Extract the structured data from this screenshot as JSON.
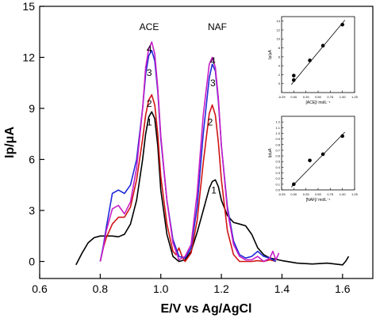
{
  "chart_data": {
    "type": "line",
    "xlabel": "E/V vs Ag/AgCl",
    "ylabel": "Ip/μA",
    "xlim": [
      0.6,
      1.7
    ],
    "ylim": [
      -1,
      15
    ],
    "xticks": [
      "0.6",
      "0.8",
      "1.0",
      "1.2",
      "1.4",
      "1.6"
    ],
    "yticks": [
      "0",
      "3",
      "6",
      "9",
      "12",
      "15"
    ],
    "annotations": [
      "ACE",
      "NAF"
    ],
    "series": [
      {
        "name": "1",
        "color": "#000000",
        "x": [
          0.72,
          0.74,
          0.76,
          0.78,
          0.8,
          0.82,
          0.84,
          0.86,
          0.88,
          0.9,
          0.92,
          0.94,
          0.95,
          0.96,
          0.97,
          0.98,
          0.99,
          1.0,
          1.02,
          1.04,
          1.06,
          1.08,
          1.1,
          1.12,
          1.14,
          1.16,
          1.17,
          1.18,
          1.19,
          1.2,
          1.22,
          1.24,
          1.26,
          1.28,
          1.3,
          1.32,
          1.34,
          1.36,
          1.4,
          1.45,
          1.5,
          1.55,
          1.6,
          1.61,
          1.62
        ],
        "y": [
          -0.2,
          0.5,
          1.1,
          1.4,
          1.5,
          1.5,
          1.5,
          1.45,
          1.6,
          2.2,
          3.6,
          6.0,
          7.5,
          8.5,
          8.8,
          8.4,
          6.8,
          4.2,
          1.6,
          0.3,
          0.0,
          0.1,
          0.6,
          1.7,
          3.0,
          4.3,
          4.7,
          4.8,
          4.4,
          3.6,
          2.7,
          2.3,
          2.2,
          2.1,
          1.6,
          0.8,
          0.4,
          0.2,
          0.05,
          -0.1,
          -0.15,
          -0.1,
          -0.2,
          0.0,
          0.3
        ]
      },
      {
        "name": "2",
        "color": "#d01414",
        "x": [
          0.8,
          0.81,
          0.82,
          0.84,
          0.86,
          0.88,
          0.9,
          0.92,
          0.94,
          0.95,
          0.96,
          0.97,
          0.98,
          0.99,
          1.0,
          1.02,
          1.04,
          1.05,
          1.06,
          1.07,
          1.08,
          1.1,
          1.12,
          1.14,
          1.16,
          1.17,
          1.18,
          1.19,
          1.2,
          1.22,
          1.24,
          1.26,
          1.28,
          1.3,
          1.32,
          1.34,
          1.36,
          1.38
        ],
        "y": [
          0.0,
          0.8,
          1.4,
          2.2,
          2.6,
          2.6,
          3.2,
          4.8,
          7.2,
          8.6,
          9.5,
          9.8,
          9.2,
          7.5,
          5.0,
          2.2,
          0.6,
          0.4,
          0.8,
          0.3,
          0.0,
          0.5,
          2.4,
          5.8,
          8.7,
          9.2,
          8.6,
          7.0,
          4.8,
          1.8,
          0.4,
          0.0,
          0.0,
          0.0,
          0.05,
          0.0,
          0.1,
          0.0
        ]
      },
      {
        "name": "3",
        "color": "#1f2bd6",
        "x": [
          0.8,
          0.81,
          0.82,
          0.84,
          0.86,
          0.88,
          0.9,
          0.92,
          0.94,
          0.95,
          0.96,
          0.97,
          0.98,
          0.99,
          1.0,
          1.02,
          1.04,
          1.06,
          1.08,
          1.1,
          1.12,
          1.14,
          1.16,
          1.17,
          1.18,
          1.19,
          1.2,
          1.22,
          1.24,
          1.26,
          1.28,
          1.3,
          1.32,
          1.34,
          1.36,
          1.38
        ],
        "y": [
          0.0,
          0.9,
          2.0,
          4.0,
          4.2,
          4.0,
          4.5,
          6.0,
          9.0,
          11.0,
          12.1,
          12.4,
          11.8,
          10.0,
          7.2,
          3.6,
          1.3,
          0.3,
          0.2,
          0.8,
          3.2,
          7.5,
          10.8,
          11.6,
          11.2,
          9.4,
          6.8,
          3.2,
          1.2,
          0.4,
          0.2,
          0.3,
          0.6,
          0.3,
          0.2,
          0.0
        ]
      },
      {
        "name": "4",
        "color": "#c81ec8",
        "x": [
          0.8,
          0.81,
          0.82,
          0.84,
          0.86,
          0.88,
          0.9,
          0.92,
          0.94,
          0.95,
          0.96,
          0.97,
          0.98,
          0.99,
          1.0,
          1.02,
          1.04,
          1.06,
          1.08,
          1.1,
          1.12,
          1.14,
          1.16,
          1.17,
          1.18,
          1.19,
          1.2,
          1.22,
          1.24,
          1.26,
          1.28,
          1.3,
          1.32,
          1.34,
          1.36,
          1.37,
          1.38,
          1.39
        ],
        "y": [
          0.0,
          0.8,
          1.8,
          3.1,
          3.3,
          2.8,
          3.5,
          5.5,
          9.0,
          11.4,
          12.5,
          12.9,
          12.2,
          10.2,
          7.4,
          3.6,
          1.1,
          0.1,
          0.3,
          1.0,
          4.0,
          8.6,
          11.6,
          12.0,
          11.4,
          9.6,
          6.8,
          3.0,
          1.0,
          0.3,
          0.1,
          0.1,
          0.3,
          0.0,
          0.2,
          0.6,
          0.1,
          0.5
        ]
      }
    ],
    "curve_labels": [
      {
        "text": "1",
        "x": 0.962,
        "y": 8.0
      },
      {
        "text": "2",
        "x": 0.962,
        "y": 9.1
      },
      {
        "text": "3",
        "x": 0.962,
        "y": 10.9
      },
      {
        "text": "4",
        "x": 0.962,
        "y": 12.3
      },
      {
        "text": "1",
        "x": 1.175,
        "y": 4.0
      },
      {
        "text": "2",
        "x": 1.163,
        "y": 8.0
      },
      {
        "text": "3",
        "x": 1.172,
        "y": 10.3
      },
      {
        "text": "4",
        "x": 1.172,
        "y": 11.6
      }
    ],
    "insets": [
      {
        "type": "scatter",
        "xlabel": "[ACE]/ molL⁻¹",
        "ylabel": "Ip/μA",
        "xlim": [
          -0.25,
          1.25
        ],
        "ylim": [
          -2,
          15
        ],
        "xticks": [
          -0.25,
          0.0,
          0.25,
          0.5,
          0.75,
          1.0,
          1.25
        ],
        "xticklabels": [
          "-0.25",
          "0.00",
          "0.25",
          "0.50",
          "0.75",
          "1.00",
          "1.25"
        ],
        "yticks": [
          0,
          2,
          4,
          6,
          8,
          10,
          12,
          14
        ],
        "yticklabels": [
          "0",
          "2",
          "4",
          "6",
          "8",
          "10",
          "12",
          "14"
        ],
        "points": {
          "x": [
            0.0,
            0.0,
            0.33,
            0.6,
            1.0
          ],
          "y": [
            0.8,
            1.8,
            5.2,
            8.5,
            13.2
          ]
        },
        "fit": {
          "x": [
            -0.05,
            1.05
          ],
          "y": [
            -0.2,
            14.2
          ]
        }
      },
      {
        "type": "scatter",
        "xlabel": "[NAF]/ molL⁻¹",
        "ylabel": "Ip/μA",
        "xlim": [
          -0.25,
          1.25
        ],
        "ylim": [
          0,
          1.3
        ],
        "xticks": [
          -0.25,
          0.0,
          0.25,
          0.5,
          0.75,
          1.0,
          1.25
        ],
        "xticklabels": [
          "-0.25",
          "0.00",
          "0.25",
          "0.50",
          "0.75",
          "1.00",
          "1.25"
        ],
        "yticks": [
          0,
          0.1,
          0.2,
          0.3,
          0.4,
          0.5,
          0.6,
          0.7,
          0.8,
          0.9,
          1.0,
          1.1,
          1.2
        ],
        "yticklabels": [
          "0.0",
          "0.1",
          "0.2",
          "0.3",
          "0.4",
          "0.5",
          "0.6",
          "0.7",
          "0.8",
          "0.9",
          "1.0",
          "1.1",
          "1.2"
        ],
        "points": {
          "x": [
            0.0,
            0.33,
            0.6,
            1.0
          ],
          "y": [
            0.1,
            0.52,
            0.63,
            0.95
          ]
        },
        "fit": {
          "x": [
            -0.05,
            1.05
          ],
          "y": [
            0.05,
            1.02
          ]
        }
      }
    ]
  }
}
